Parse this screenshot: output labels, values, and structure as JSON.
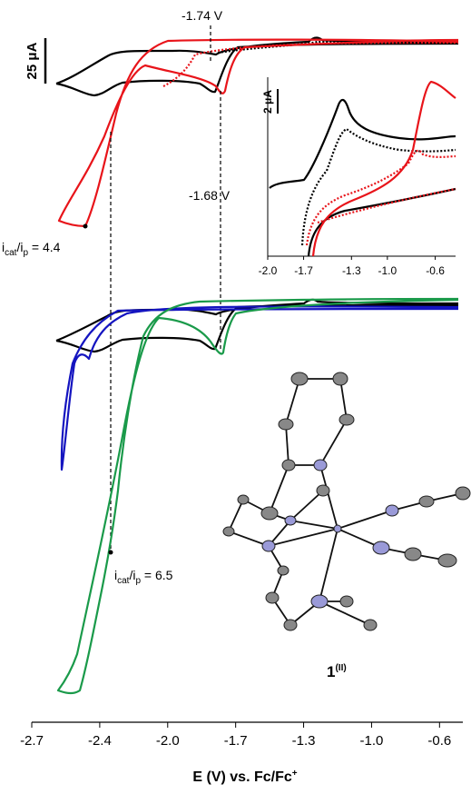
{
  "figure": {
    "scale_bar_main": "25 μA",
    "scale_bar_inset": "2 μA",
    "potential_top": "-1.74 V",
    "potential_mid": "-1.68 V",
    "ratio_top": [
      "i",
      "cat",
      "/i",
      "p",
      " = 4.4"
    ],
    "ratio_bottom": [
      "i",
      "cat",
      "/i",
      "p",
      " = 6.5"
    ],
    "compound": [
      "1",
      "(II)"
    ],
    "x_axis": {
      "label": [
        "E (V) vs. Fc/Fc",
        "+"
      ],
      "xlim": [
        -2.7,
        -0.48
      ],
      "xticks": [
        -2.7,
        {
          "value": -2.35,
          "label": "-2.4"
        },
        {
          "value": -2,
          "label": "-2.0"
        },
        {
          "value": -1.65,
          "label": "-1.7"
        },
        -1.3,
        {
          "value": -0.95,
          "label": "-1.0"
        },
        -0.6
      ]
    },
    "inset_axis": {
      "xlim": [
        -2.0,
        -0.43
      ],
      "xticks": [
        {
          "value": -2,
          "label": "-2.0"
        },
        -1.7,
        -1.3,
        {
          "value": -1,
          "label": "-1.0"
        },
        -0.6
      ]
    }
  }
}
